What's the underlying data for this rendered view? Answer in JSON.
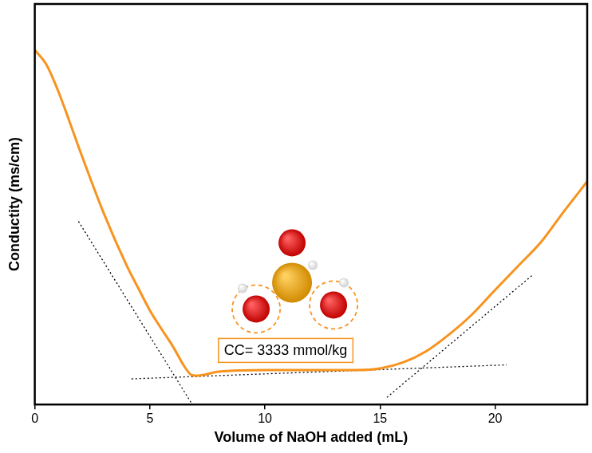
{
  "chart_data": {
    "type": "line",
    "x_label": "Volume of NaOH added (mL)",
    "y_label": "Conductity (ms/cm)",
    "xlim": [
      0,
      24
    ],
    "xticks": [
      0,
      5,
      10,
      15,
      20
    ],
    "ylim": [
      0,
      100
    ],
    "tick_labels": "x",
    "grid": false,
    "annotations": [
      {
        "text": "CC= 3333 mmol/kg",
        "x": 10.9,
        "y": 13.5
      }
    ],
    "series": [
      {
        "color": "#f7931e",
        "line_style": "solid",
        "x": [
          0,
          0.5,
          1,
          1.5,
          2,
          3,
          4,
          4.5,
          5,
          5.5,
          6,
          6.5,
          6.8,
          7,
          8,
          10,
          12,
          14,
          15,
          16,
          17,
          18,
          19,
          20,
          21,
          22,
          23,
          24
        ],
        "values": [
          88.5,
          84.9,
          78.5,
          70.8,
          62.8,
          47.7,
          34.6,
          29,
          23.5,
          18.9,
          14.5,
          9.5,
          7.4,
          7.2,
          8.2,
          8.6,
          8.6,
          8.6,
          9,
          10.5,
          13.3,
          17.5,
          22.5,
          28.6,
          34.6,
          40.6,
          48.3,
          55.7
        ]
      },
      {
        "color": "#000000",
        "line_style": "dotted",
        "x": [
          1.9,
          6.8
        ],
        "values": [
          45.7,
          0.4
        ]
      },
      {
        "color": "#000000",
        "line_style": "dotted",
        "x": [
          4.2,
          20.5
        ],
        "values": [
          6.4,
          9.9
        ]
      },
      {
        "color": "#000000",
        "line_style": "dotted",
        "x": [
          15.3,
          21.6
        ],
        "values": [
          1.8,
          32.2
        ]
      }
    ]
  }
}
